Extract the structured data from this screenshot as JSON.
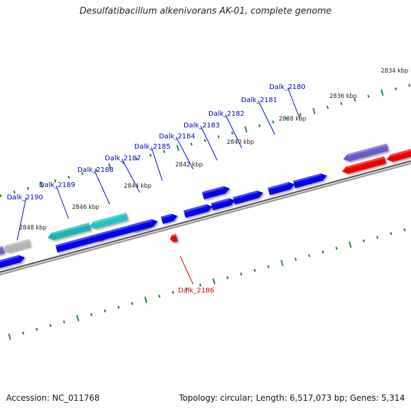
{
  "title": "Desulfatibacillum alkenivorans AK-01, complete genome",
  "footer": {
    "accession": "Accession: NC_011768",
    "topology": "Topology: circular; Length: 6,517,073 bp; Genes: 5,314"
  },
  "colors": {
    "backbone": "#777777",
    "forward_gene": "#0000ee",
    "reverse_gene": "#ee0000",
    "cyan_gene": "#22bbbb",
    "slate_gene": "#6a5acd",
    "gray_gene": "#b4b4b4",
    "tick_mark": "#1f8a2a",
    "label_forward": "#0000cc",
    "label_reverse": "#cc0000"
  },
  "ticks": [
    {
      "label": "2834 kbp"
    },
    {
      "label": "2836 kbp"
    },
    {
      "label": "2838 kbp"
    },
    {
      "label": "2840 kbp"
    },
    {
      "label": "2842 kbp"
    },
    {
      "label": "2844 kbp"
    },
    {
      "label": "2846 kbp"
    },
    {
      "label": "2848 kbp"
    }
  ],
  "gene_labels": [
    {
      "text": "Dalk_2180",
      "strand": "forward"
    },
    {
      "text": "Dalk_2181",
      "strand": "forward"
    },
    {
      "text": "Dalk_2182",
      "strand": "forward"
    },
    {
      "text": "Dalk_2183",
      "strand": "forward"
    },
    {
      "text": "Dalk_2184",
      "strand": "forward"
    },
    {
      "text": "Dalk_2185",
      "strand": "forward"
    },
    {
      "text": "Dalk_2187",
      "strand": "forward"
    },
    {
      "text": "Dalk_2188",
      "strand": "forward"
    },
    {
      "text": "Dalk_2189",
      "strand": "forward"
    },
    {
      "text": "Dalk_2190",
      "strand": "forward"
    },
    {
      "text": "Dalk_2186",
      "strand": "reverse"
    }
  ]
}
